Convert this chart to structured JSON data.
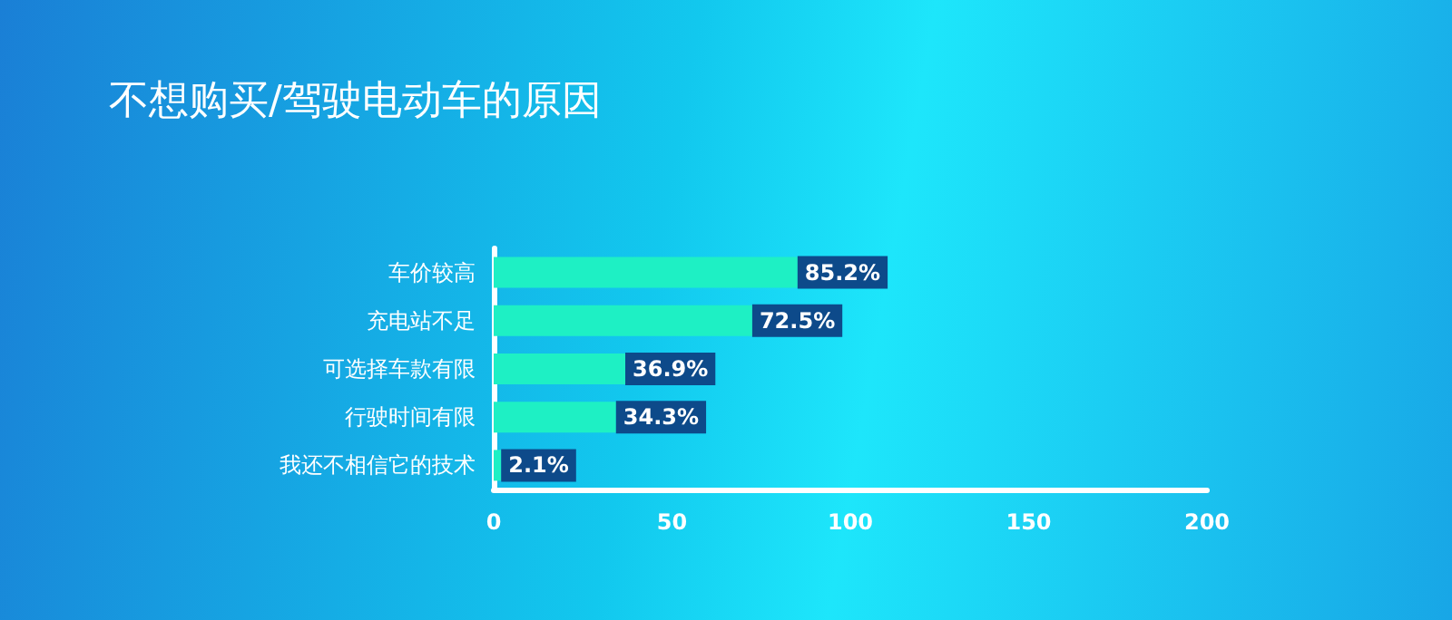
{
  "chart_data": {
    "type": "bar",
    "orientation": "horizontal",
    "title": "不想购买/驾驶电动车的原因",
    "categories": [
      "车价较高",
      "充电站不足",
      "可选择车款有限",
      "行驶时间有限",
      "我还不相信它的技术"
    ],
    "values": [
      85.2,
      72.5,
      36.9,
      34.3,
      2.1
    ],
    "value_labels": [
      "85.2%",
      "72.5%",
      "36.9%",
      "34.3%",
      "2.1%"
    ],
    "color": "#1ef0c4",
    "xlim": [
      0,
      200
    ],
    "xticks": [
      0,
      50,
      100,
      150,
      200
    ],
    "grid": false
  }
}
